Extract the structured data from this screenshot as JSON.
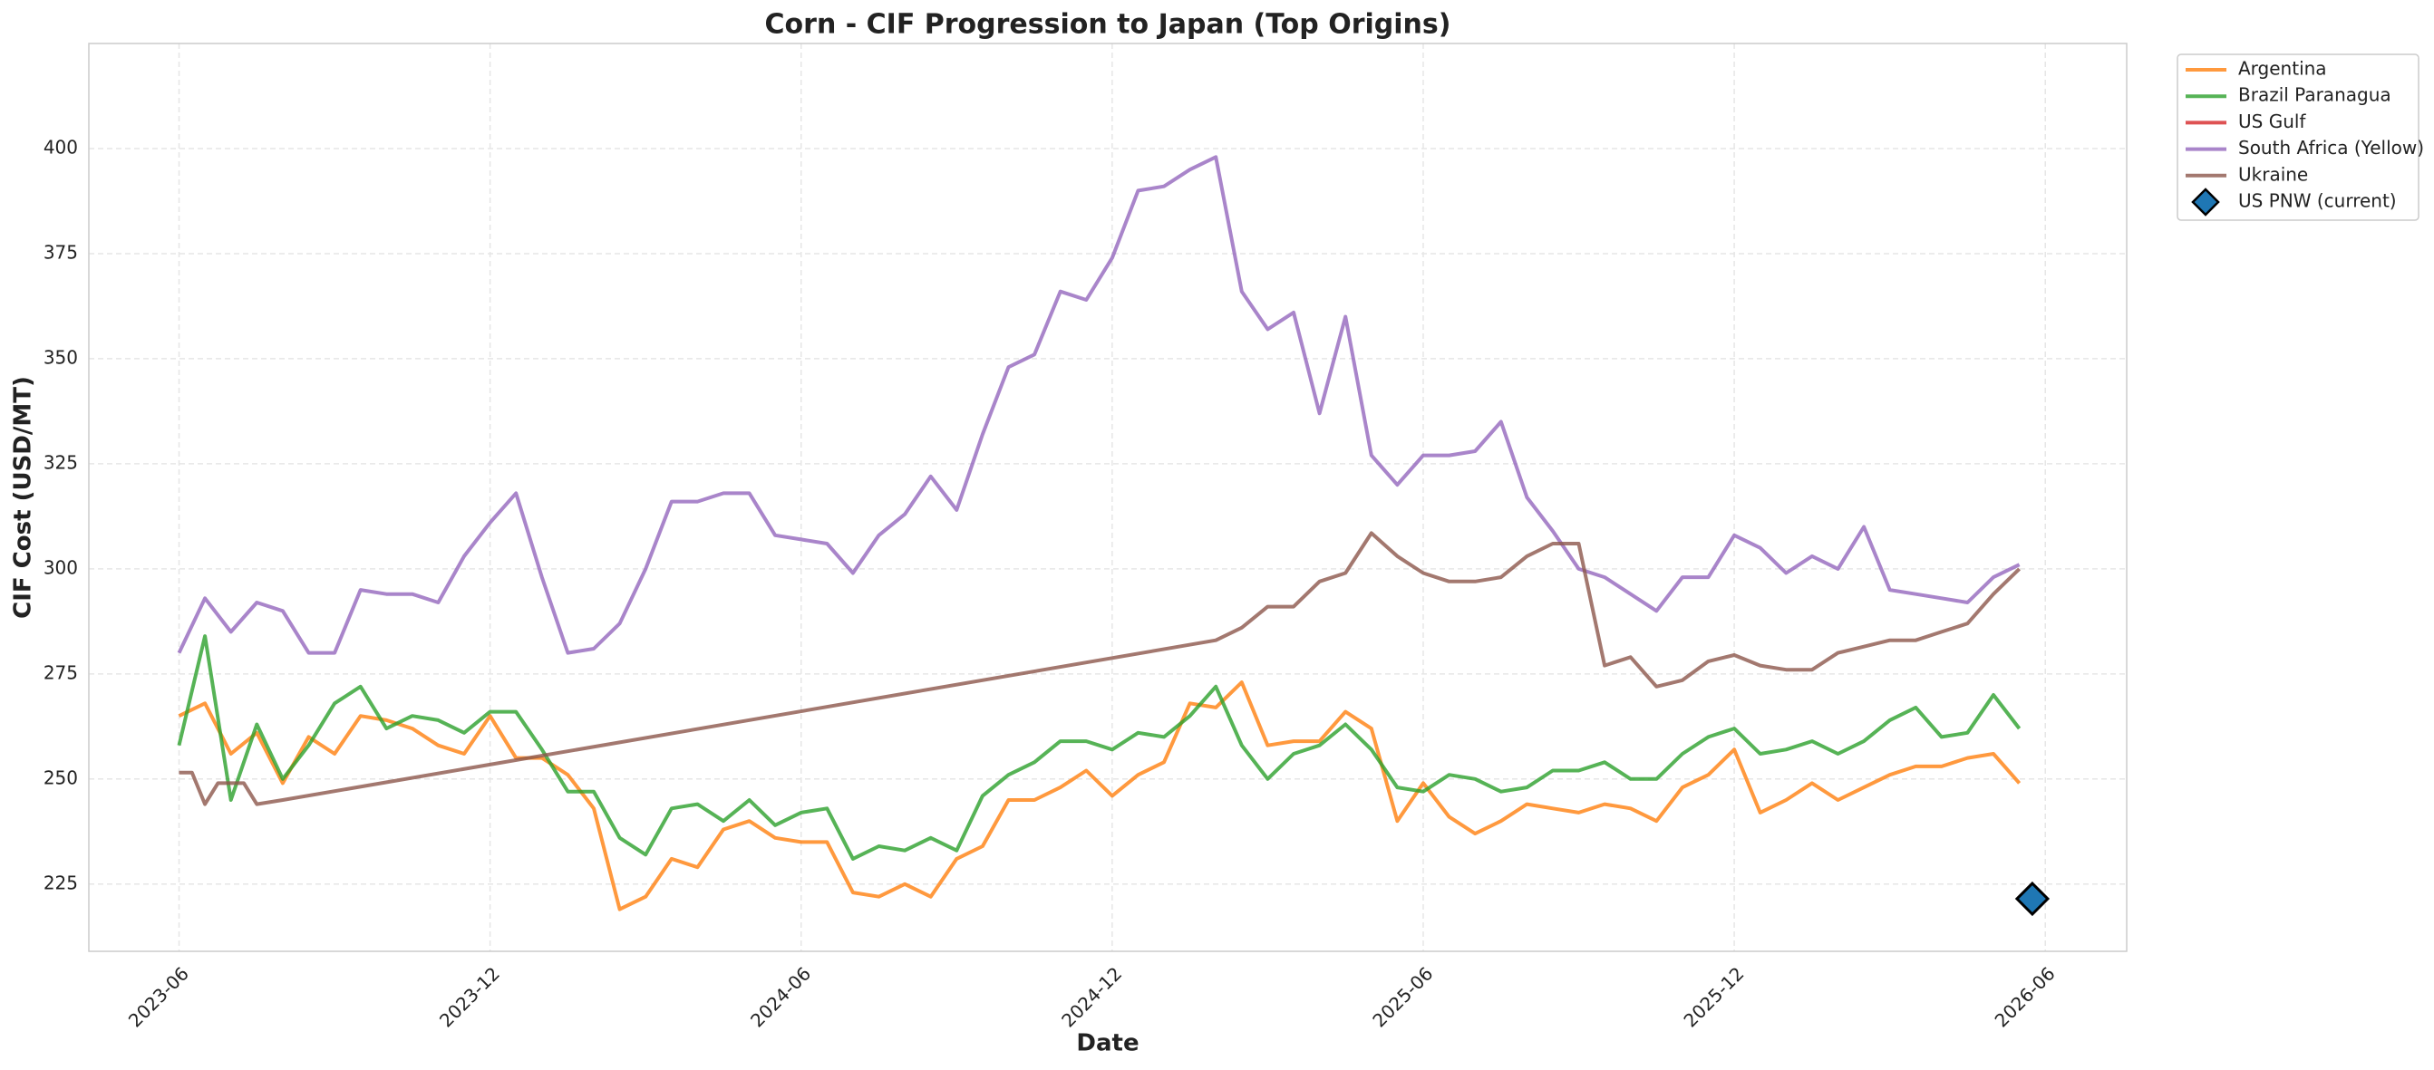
{
  "chart_data": {
    "type": "line",
    "title": "Corn - CIF Progression to Japan (Top Origins)",
    "x_label": "Date",
    "y_label": "CIF Cost (USD/MT)",
    "x": [
      0,
      0.5,
      1,
      1.5,
      2,
      2.5,
      3,
      3.5,
      4,
      4.5,
      5,
      5.5,
      6,
      6.5,
      7,
      7.5,
      8,
      8.5,
      9,
      9.5,
      10,
      10.5,
      11,
      11.5,
      12,
      12.5,
      13,
      13.5,
      14,
      14.5,
      15,
      15.5,
      16,
      16.5,
      17,
      17.5,
      18,
      18.5,
      19,
      19.5,
      20,
      20.5,
      21,
      21.5,
      22,
      22.5,
      23,
      23.5,
      24,
      24.5,
      25,
      25.5,
      26,
      26.5,
      27,
      27.5,
      28,
      28.5,
      29,
      29.5,
      30,
      30.5,
      31,
      31.5,
      32,
      32.5,
      33,
      33.5,
      34,
      34.5,
      35,
      35.5
    ],
    "series": [
      {
        "name": "Argentina",
        "color": "#ff7f0e",
        "values": [
          265,
          268,
          256,
          261,
          249,
          260,
          256,
          265,
          264,
          262,
          258,
          256,
          265,
          255,
          255,
          251,
          243,
          219,
          222,
          231,
          229,
          238,
          240,
          236,
          235,
          235,
          223,
          222,
          225,
          222,
          231,
          234,
          245,
          245,
          248,
          252,
          246,
          251,
          254,
          268,
          267,
          273,
          258,
          259,
          259,
          266,
          262,
          240,
          249,
          241,
          237,
          240,
          244,
          243,
          242,
          244,
          243,
          240,
          248,
          251,
          257,
          242,
          245,
          249,
          245,
          248,
          251,
          253,
          253,
          255,
          256,
          249
        ]
      },
      {
        "name": "Brazil Paranagua",
        "color": "#2ca02c",
        "values": [
          258,
          284,
          245,
          263,
          250,
          258,
          268,
          272,
          262,
          265,
          264,
          261,
          266,
          266,
          257,
          247,
          247,
          236,
          232,
          243,
          244,
          240,
          245,
          239,
          242,
          243,
          231,
          234,
          233,
          236,
          233,
          246,
          251,
          254,
          259,
          259,
          257,
          261,
          260,
          265,
          272,
          258,
          250,
          256,
          258,
          263,
          257,
          248,
          247,
          251,
          250,
          247,
          248,
          252,
          252,
          254,
          250,
          250,
          256,
          260,
          262,
          256,
          257,
          259,
          256,
          259,
          264,
          267,
          260,
          261,
          270,
          262
        ]
      },
      {
        "name": "US Gulf",
        "color": "#d62728",
        "x": [],
        "values": []
      },
      {
        "name": "South Africa (Yellow)",
        "color": "#9467bd",
        "values": [
          280,
          293,
          285,
          292,
          290,
          280,
          280,
          295,
          294,
          294,
          292,
          303,
          311,
          318,
          298,
          280,
          281,
          287,
          300,
          316,
          316,
          318,
          318,
          308,
          307,
          306,
          299,
          308,
          313,
          322,
          314,
          332,
          348,
          351,
          366,
          364,
          374,
          390,
          391,
          395,
          398,
          366,
          357,
          361,
          337,
          360,
          327,
          320,
          327,
          327,
          328,
          335,
          317,
          309,
          300,
          298,
          294,
          290,
          298,
          298,
          308,
          305,
          299,
          303,
          300,
          310,
          295,
          294,
          293,
          292,
          298,
          301
        ]
      },
      {
        "name": "Ukraine",
        "color": "#8c564b",
        "x": [
          0,
          0.25,
          0.5,
          0.75,
          1,
          1.25,
          1.5,
          2,
          20,
          20.5,
          21,
          21.5,
          22,
          22.5,
          23,
          23.5,
          24,
          24.5,
          25,
          25.5,
          26,
          26.5,
          27,
          27.5,
          28,
          28.5,
          29,
          29.5,
          30,
          30.5,
          31,
          31.5,
          32,
          32.5,
          33,
          33.5,
          34,
          34.5,
          35,
          35.5
        ],
        "values": [
          251.5,
          251.5,
          244,
          249,
          249,
          249,
          244,
          245,
          283,
          286,
          291,
          291,
          297,
          299,
          308.5,
          303,
          299,
          297,
          297,
          298,
          303,
          306,
          306,
          277,
          279,
          272,
          273.5,
          278,
          279.5,
          277,
          276,
          276,
          280,
          281.5,
          283,
          283,
          285,
          287,
          294,
          300
        ]
      },
      {
        "name": "US PNW (current)",
        "color": "#1f77b4",
        "marker": "diamond",
        "x": [
          35.75
        ],
        "values": [
          221.5
        ]
      }
    ],
    "xlim": [
      -1.74,
      37.57
    ],
    "xticks": [
      {
        "value": 0,
        "label": "2023-06"
      },
      {
        "value": 6,
        "label": "2023-12"
      },
      {
        "value": 12,
        "label": "2024-06"
      },
      {
        "value": 18,
        "label": "2024-12"
      },
      {
        "value": 24,
        "label": "2025-06"
      },
      {
        "value": 30,
        "label": "2025-12"
      },
      {
        "value": 36,
        "label": "2026-06"
      }
    ],
    "ylim": [
      209,
      425
    ],
    "yticks": [
      225,
      250,
      275,
      300,
      325,
      350,
      375,
      400
    ],
    "grid": true,
    "legend": "outside upper right"
  }
}
